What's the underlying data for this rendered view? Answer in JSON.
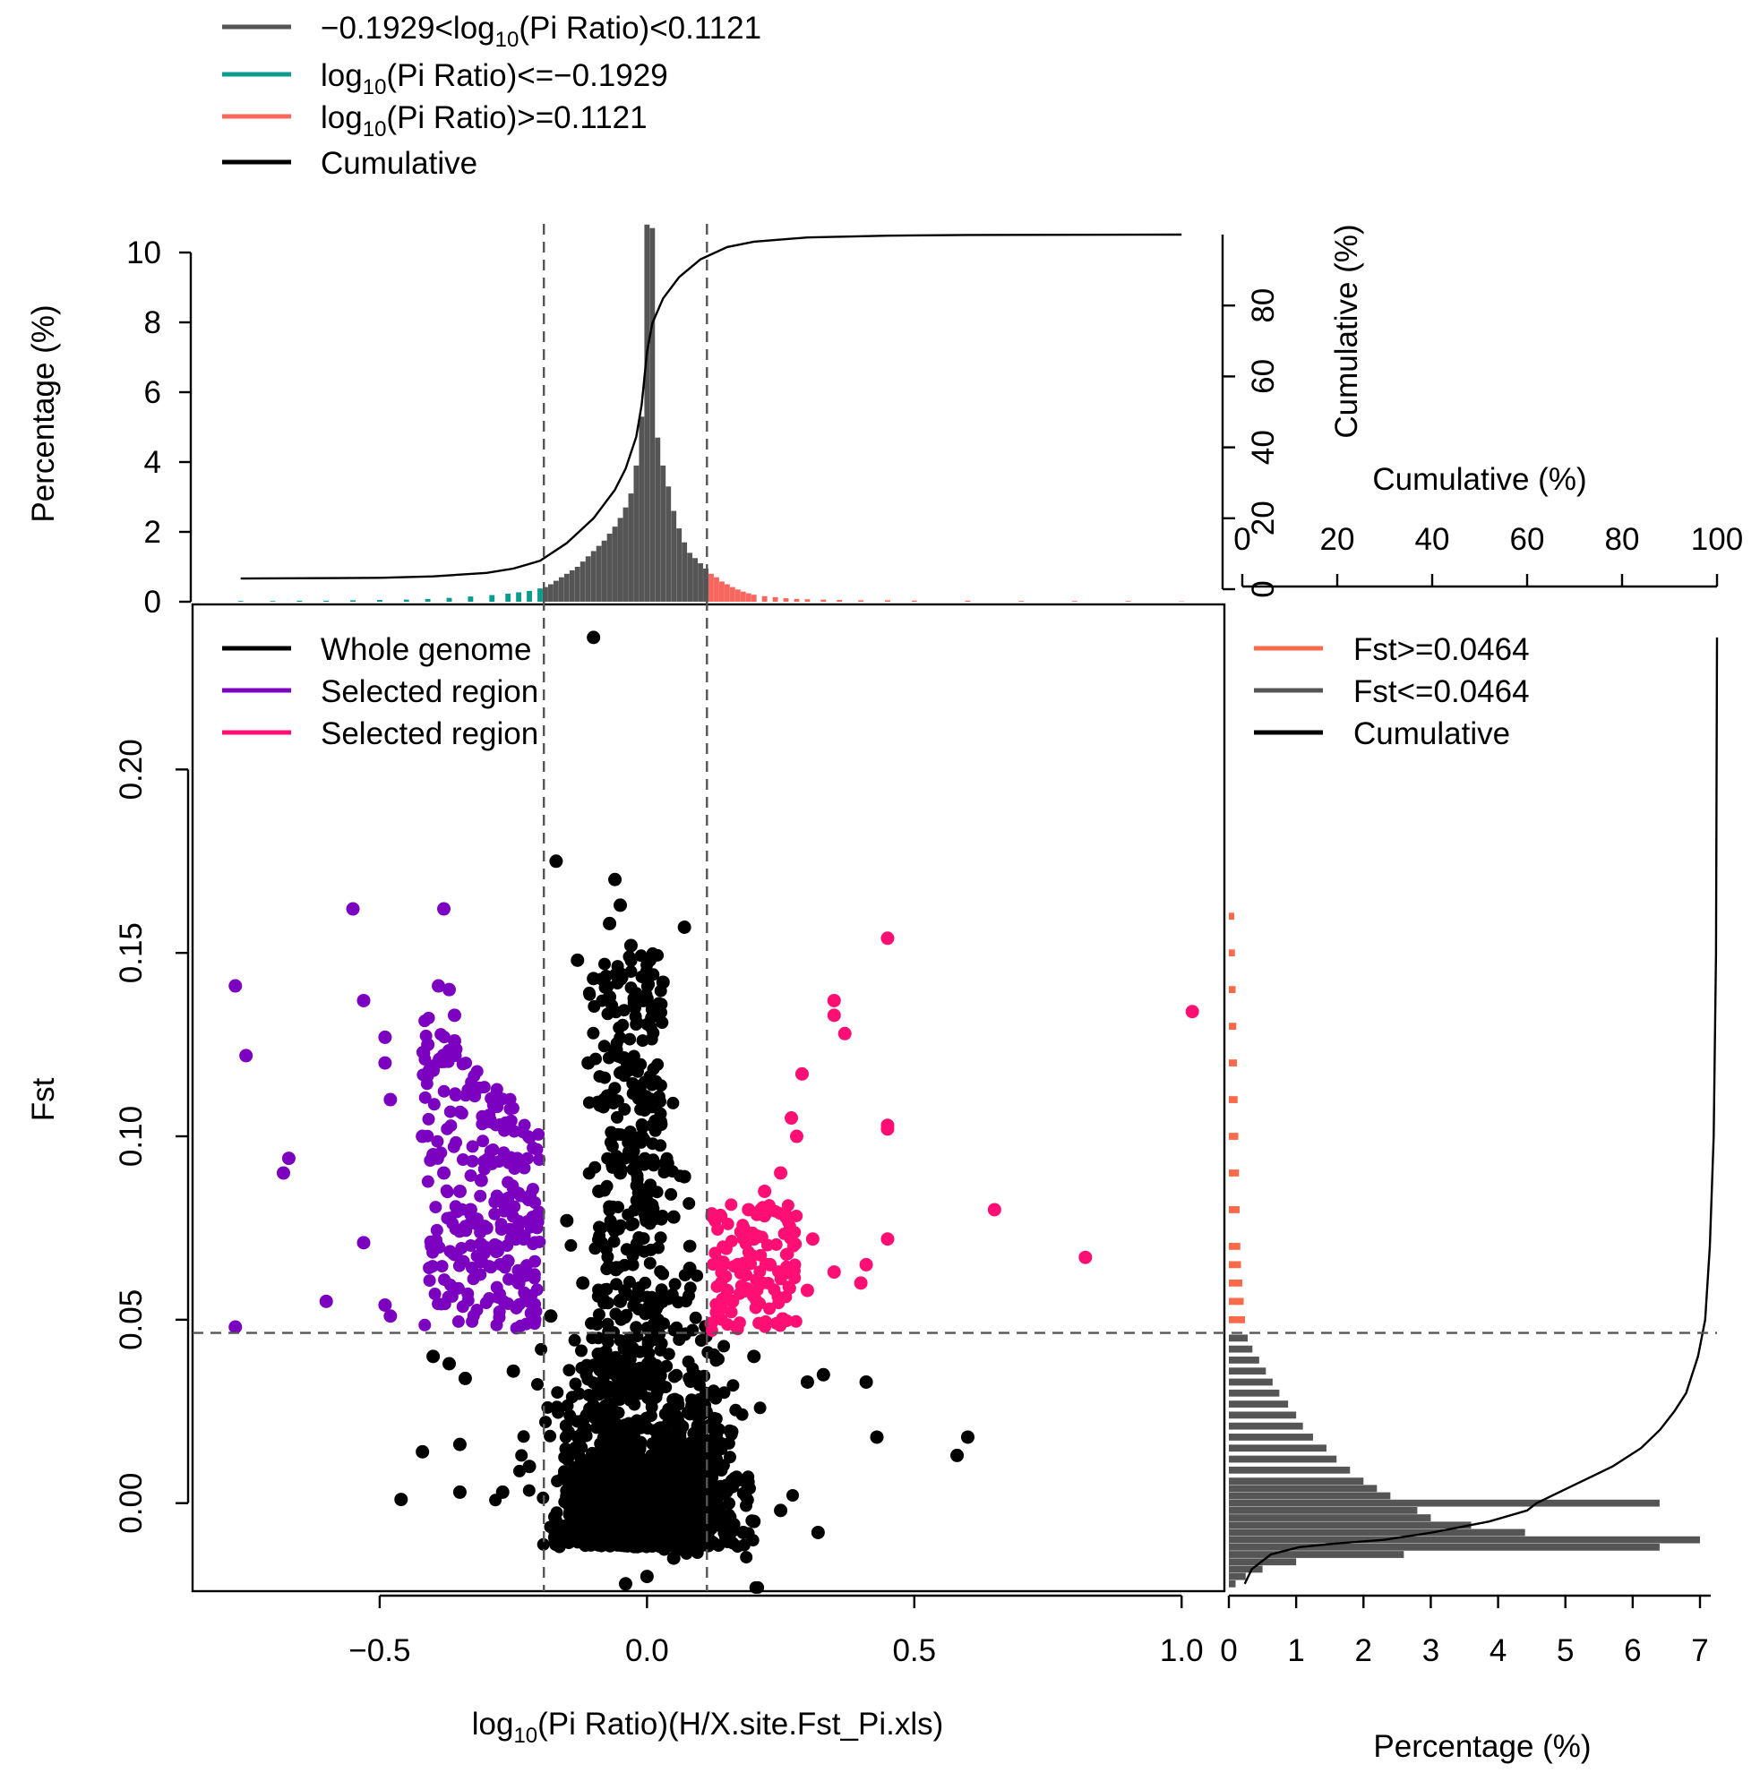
{
  "colors": {
    "mid": "#555555",
    "low": "#0c9b8c",
    "high": "#f8665e",
    "cumulative": "#000000",
    "whole": "#000000",
    "selected_left": "#7b00c0",
    "selected_right": "#ff0f74",
    "fst_high": "#f86a4a",
    "fst_low": "#555555"
  },
  "top_legend": [
    {
      "key": "mid",
      "pre": "−0.1929<log",
      "sub": "10",
      "post": "(Pi Ratio)<0.1121"
    },
    {
      "key": "low",
      "pre": "log",
      "sub": "10",
      "post": "(Pi Ratio)<=−0.1929"
    },
    {
      "key": "high",
      "pre": "log",
      "sub": "10",
      "post": "(Pi Ratio)>=0.1121"
    },
    {
      "key": "cumulative",
      "pre": "Cumulative",
      "sub": "",
      "post": ""
    }
  ],
  "main_legend": [
    {
      "key": "whole",
      "label": "Whole genome"
    },
    {
      "key": "selected_left",
      "label": "Selected region"
    },
    {
      "key": "selected_right",
      "label": "Selected region"
    }
  ],
  "right_legend": [
    {
      "key": "fst_high",
      "label": "Fst>=0.0464"
    },
    {
      "key": "fst_low",
      "label": "Fst<=0.0464"
    },
    {
      "key": "cumulative",
      "label": "Cumulative"
    }
  ],
  "chart_data": [
    {
      "id": "top_histogram",
      "type": "bar",
      "ylabel": "Percentage (%)",
      "ylabel_right": "Cumulative (%)",
      "ylim": [
        0,
        10
      ],
      "yticks": [
        "0",
        "2",
        "4",
        "6",
        "8",
        "10"
      ],
      "right_ticks": [
        "0",
        "20",
        "40",
        "60",
        "80"
      ],
      "thresholds": [
        -0.1929,
        0.1121
      ],
      "bins": [
        [
          -0.76,
          0.02
        ],
        [
          -0.7,
          0.02
        ],
        [
          -0.65,
          0.03
        ],
        [
          -0.6,
          0.03
        ],
        [
          -0.55,
          0.04
        ],
        [
          -0.5,
          0.05
        ],
        [
          -0.45,
          0.06
        ],
        [
          -0.41,
          0.08
        ],
        [
          -0.37,
          0.11
        ],
        [
          -0.33,
          0.15
        ],
        [
          -0.29,
          0.19
        ],
        [
          -0.26,
          0.23
        ],
        [
          -0.24,
          0.27
        ],
        [
          -0.22,
          0.31
        ],
        [
          -0.2,
          0.38
        ],
        [
          -0.19,
          0.42
        ],
        [
          -0.18,
          0.5
        ],
        [
          -0.17,
          0.6
        ],
        [
          -0.16,
          0.7
        ],
        [
          -0.15,
          0.8
        ],
        [
          -0.14,
          0.9
        ],
        [
          -0.13,
          1.0
        ],
        [
          -0.12,
          1.15
        ],
        [
          -0.11,
          1.3
        ],
        [
          -0.1,
          1.45
        ],
        [
          -0.09,
          1.6
        ],
        [
          -0.08,
          1.75
        ],
        [
          -0.07,
          1.95
        ],
        [
          -0.06,
          2.15
        ],
        [
          -0.05,
          2.4
        ],
        [
          -0.04,
          2.7
        ],
        [
          -0.03,
          3.1
        ],
        [
          -0.02,
          3.9
        ],
        [
          -0.01,
          5.3
        ],
        [
          0.0,
          10.8
        ],
        [
          0.01,
          10.7
        ],
        [
          0.02,
          4.7
        ],
        [
          0.03,
          3.9
        ],
        [
          0.04,
          3.3
        ],
        [
          0.05,
          2.6
        ],
        [
          0.06,
          2.1
        ],
        [
          0.07,
          1.7
        ],
        [
          0.08,
          1.4
        ],
        [
          0.09,
          1.25
        ],
        [
          0.1,
          1.1
        ],
        [
          0.11,
          0.95
        ],
        [
          0.12,
          0.8
        ],
        [
          0.13,
          0.7
        ],
        [
          0.14,
          0.58
        ],
        [
          0.15,
          0.5
        ],
        [
          0.16,
          0.42
        ],
        [
          0.17,
          0.35
        ],
        [
          0.18,
          0.29
        ],
        [
          0.19,
          0.24
        ],
        [
          0.2,
          0.2
        ],
        [
          0.22,
          0.16
        ],
        [
          0.24,
          0.13
        ],
        [
          0.26,
          0.1
        ],
        [
          0.28,
          0.08
        ],
        [
          0.3,
          0.07
        ],
        [
          0.33,
          0.06
        ],
        [
          0.36,
          0.05
        ],
        [
          0.4,
          0.04
        ],
        [
          0.45,
          0.04
        ],
        [
          0.5,
          0.03
        ],
        [
          0.6,
          0.03
        ],
        [
          0.7,
          0.02
        ],
        [
          0.8,
          0.02
        ],
        [
          0.9,
          0.02
        ],
        [
          1.0,
          0.01
        ]
      ],
      "cumulative": [
        [
          -0.76,
          3.0
        ],
        [
          -0.5,
          3.2
        ],
        [
          -0.4,
          3.6
        ],
        [
          -0.3,
          4.6
        ],
        [
          -0.25,
          5.8
        ],
        [
          -0.2,
          8.0
        ],
        [
          -0.15,
          13.0
        ],
        [
          -0.1,
          20.0
        ],
        [
          -0.06,
          28.0
        ],
        [
          -0.04,
          34.0
        ],
        [
          -0.02,
          43.0
        ],
        [
          -0.01,
          52.0
        ],
        [
          0.0,
          67.0
        ],
        [
          0.01,
          75.0
        ],
        [
          0.03,
          82.0
        ],
        [
          0.06,
          88.0
        ],
        [
          0.1,
          93.0
        ],
        [
          0.15,
          96.5
        ],
        [
          0.2,
          98.0
        ],
        [
          0.3,
          99.2
        ],
        [
          0.45,
          99.7
        ],
        [
          0.6,
          99.9
        ],
        [
          1.0,
          100.0
        ]
      ]
    },
    {
      "id": "scatter",
      "type": "scatter",
      "title": "",
      "xlabel_pre": "log",
      "xlabel_sub": "10",
      "xlabel_post": "(Pi Ratio)(H/X.site.Fst_Pi.xls)",
      "ylabel": "Fst",
      "xlim": [
        -0.85,
        1.08
      ],
      "ylim": [
        -0.024,
        0.245
      ],
      "xticks": [
        "−0.5",
        "0.0",
        "0.5",
        "1.0"
      ],
      "yticks": [
        "0.00",
        "0.05",
        "0.10",
        "0.15",
        "0.20"
      ],
      "thresholds": {
        "x_low": -0.1929,
        "x_high": 0.1121,
        "fst": 0.0464
      },
      "series": [
        {
          "name": "Whole genome",
          "key": "whole",
          "points": [
            [
              -0.1,
              0.236
            ],
            [
              -0.17,
              0.175
            ],
            [
              -0.06,
              0.17
            ],
            [
              -0.05,
              0.163
            ],
            [
              -0.07,
              0.158
            ],
            [
              -0.03,
              0.152
            ],
            [
              0.07,
              0.157
            ],
            [
              -0.13,
              0.148
            ],
            [
              -0.1,
              0.143
            ],
            [
              0.03,
              0.142
            ],
            [
              -0.07,
              0.138
            ],
            [
              -0.11,
              0.12
            ],
            [
              -0.08,
              0.11
            ],
            [
              -0.01,
              0.1
            ],
            [
              -0.05,
              0.09
            ],
            [
              0.07,
              0.089
            ],
            [
              -0.09,
              0.085
            ],
            [
              -0.15,
              0.077
            ],
            [
              0.05,
              0.078
            ],
            [
              0.08,
              0.064
            ],
            [
              -0.12,
              0.06
            ],
            [
              -0.05,
              0.055
            ],
            [
              -0.18,
              0.051
            ],
            [
              0.02,
              0.05
            ],
            [
              -0.4,
              0.04
            ],
            [
              -0.37,
              0.038
            ],
            [
              -0.34,
              0.034
            ],
            [
              -0.25,
              0.036
            ],
            [
              0.2,
              0.04
            ],
            [
              0.3,
              0.033
            ],
            [
              0.33,
              0.035
            ],
            [
              0.41,
              0.033
            ],
            [
              -0.42,
              0.014
            ],
            [
              -0.35,
              0.016
            ],
            [
              0.43,
              0.018
            ],
            [
              0.58,
              0.013
            ],
            [
              0.6,
              0.018
            ],
            [
              -0.46,
              0.001
            ],
            [
              -0.35,
              0.003
            ],
            [
              -0.27,
              0.003
            ],
            [
              -0.22,
              0.01
            ],
            [
              -0.15,
              -0.009
            ],
            [
              -0.1,
              -0.01
            ],
            [
              0.18,
              -0.008
            ],
            [
              0.2,
              -0.005
            ],
            [
              0.32,
              -0.008
            ],
            [
              0.25,
              -0.002
            ],
            [
              -0.04,
              -0.022
            ],
            [
              0.0,
              -0.02
            ],
            [
              0.05,
              -0.015
            ]
          ]
        },
        {
          "name": "Selected region",
          "key": "selected_left",
          "points": [
            [
              -0.77,
              0.141
            ],
            [
              -0.75,
              0.122
            ],
            [
              -0.67,
              0.094
            ],
            [
              -0.68,
              0.09
            ],
            [
              -0.6,
              0.055
            ],
            [
              -0.53,
              0.071
            ],
            [
              -0.55,
              0.162
            ],
            [
              -0.53,
              0.137
            ],
            [
              -0.49,
              0.127
            ],
            [
              -0.49,
              0.12
            ],
            [
              -0.48,
              0.11
            ],
            [
              -0.49,
              0.054
            ],
            [
              -0.48,
              0.051
            ],
            [
              -0.38,
              0.162
            ],
            [
              -0.39,
              0.141
            ],
            [
              -0.37,
              0.14
            ],
            [
              -0.36,
              0.133
            ],
            [
              -0.36,
              0.126
            ],
            [
              -0.41,
              0.125
            ],
            [
              -0.4,
              0.118
            ],
            [
              -0.77,
              0.048
            ],
            [
              -0.42,
              0.1
            ],
            [
              -0.4,
              0.095
            ],
            [
              -0.38,
              0.09
            ],
            [
              -0.35,
              0.085
            ],
            [
              -0.33,
              0.08
            ],
            [
              -0.3,
              0.075
            ],
            [
              -0.28,
              0.07
            ],
            [
              -0.26,
              0.066
            ],
            [
              -0.24,
              0.06
            ],
            [
              -0.22,
              0.055
            ],
            [
              -0.21,
              0.05
            ],
            [
              -0.31,
              0.088
            ],
            [
              -0.29,
              0.093
            ],
            [
              -0.27,
              0.082
            ]
          ]
        },
        {
          "name": "Selected region",
          "key": "selected_right",
          "points": [
            [
              0.45,
              0.154
            ],
            [
              0.35,
              0.137
            ],
            [
              0.35,
              0.133
            ],
            [
              0.37,
              0.128
            ],
            [
              0.29,
              0.117
            ],
            [
              1.02,
              0.134
            ],
            [
              0.45,
              0.103
            ],
            [
              0.45,
              0.102
            ],
            [
              0.27,
              0.105
            ],
            [
              0.28,
              0.1
            ],
            [
              0.65,
              0.08
            ],
            [
              0.82,
              0.067
            ],
            [
              0.45,
              0.072
            ],
            [
              0.41,
              0.065
            ],
            [
              0.4,
              0.06
            ],
            [
              0.35,
              0.063
            ],
            [
              0.31,
              0.072
            ],
            [
              0.25,
              0.09
            ],
            [
              0.22,
              0.085
            ],
            [
              0.19,
              0.08
            ],
            [
              0.2,
              0.072
            ],
            [
              0.17,
              0.065
            ],
            [
              0.15,
              0.058
            ],
            [
              0.13,
              0.052
            ],
            [
              0.12,
              0.049
            ],
            [
              0.23,
              0.065
            ],
            [
              0.26,
              0.078
            ],
            [
              0.21,
              0.06
            ],
            [
              0.16,
              0.055
            ],
            [
              0.3,
              0.058
            ]
          ]
        }
      ]
    },
    {
      "id": "right_histogram",
      "type": "bar",
      "orientation": "horizontal",
      "xlabel": "Percentage (%)",
      "xlabel_top": "Cumulative (%)",
      "xlim": [
        0,
        7
      ],
      "xticks": [
        "0",
        "1",
        "2",
        "3",
        "4",
        "5",
        "6",
        "7"
      ],
      "top_ticks": [
        "0",
        "20",
        "40",
        "60",
        "80",
        "100"
      ],
      "threshold": 0.0464,
      "bins": [
        [
          0.16,
          0.08
        ],
        [
          0.15,
          0.09
        ],
        [
          0.14,
          0.1
        ],
        [
          0.13,
          0.11
        ],
        [
          0.12,
          0.12
        ],
        [
          0.11,
          0.13
        ],
        [
          0.1,
          0.14
        ],
        [
          0.09,
          0.15
        ],
        [
          0.08,
          0.16
        ],
        [
          0.07,
          0.17
        ],
        [
          0.065,
          0.18
        ],
        [
          0.06,
          0.2
        ],
        [
          0.055,
          0.22
        ],
        [
          0.05,
          0.24
        ],
        [
          0.045,
          0.28
        ],
        [
          0.042,
          0.35
        ],
        [
          0.039,
          0.45
        ],
        [
          0.036,
          0.55
        ],
        [
          0.033,
          0.65
        ],
        [
          0.03,
          0.75
        ],
        [
          0.027,
          0.88
        ],
        [
          0.024,
          1.0
        ],
        [
          0.021,
          1.1
        ],
        [
          0.018,
          1.25
        ],
        [
          0.015,
          1.45
        ],
        [
          0.012,
          1.6
        ],
        [
          0.009,
          1.8
        ],
        [
          0.006,
          2.0
        ],
        [
          0.004,
          2.2
        ],
        [
          0.002,
          2.4
        ],
        [
          0.0,
          6.4
        ],
        [
          -0.002,
          2.8
        ],
        [
          -0.004,
          3.0
        ],
        [
          -0.006,
          3.6
        ],
        [
          -0.008,
          4.4
        ],
        [
          -0.01,
          7.0
        ],
        [
          -0.012,
          6.4
        ],
        [
          -0.014,
          2.6
        ],
        [
          -0.016,
          1.0
        ],
        [
          -0.018,
          0.5
        ],
        [
          -0.02,
          0.25
        ],
        [
          -0.022,
          0.1
        ]
      ],
      "cumulative": [
        [
          -0.022,
          0.5
        ],
        [
          -0.018,
          2.0
        ],
        [
          -0.014,
          6.0
        ],
        [
          -0.012,
          12.0
        ],
        [
          -0.011,
          20.0
        ],
        [
          -0.01,
          30.0
        ],
        [
          -0.008,
          40.0
        ],
        [
          -0.005,
          52.0
        ],
        [
          -0.002,
          60.0
        ],
        [
          0.0,
          62.0
        ],
        [
          0.005,
          70.0
        ],
        [
          0.01,
          78.0
        ],
        [
          0.015,
          84.0
        ],
        [
          0.02,
          88.0
        ],
        [
          0.025,
          91.0
        ],
        [
          0.03,
          93.5
        ],
        [
          0.04,
          96.0
        ],
        [
          0.05,
          97.5
        ],
        [
          0.07,
          98.5
        ],
        [
          0.1,
          99.3
        ],
        [
          0.15,
          99.8
        ],
        [
          0.236,
          100.0
        ]
      ]
    }
  ]
}
